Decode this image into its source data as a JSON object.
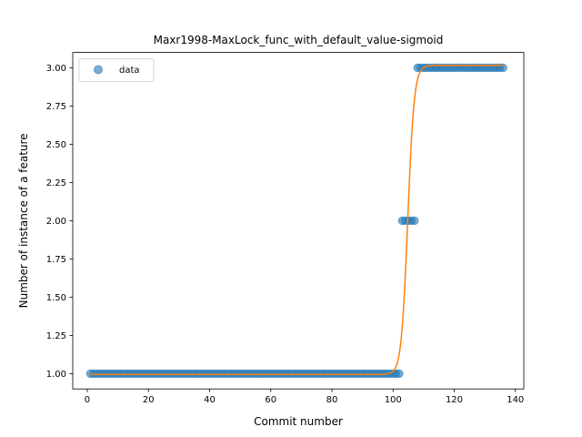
{
  "chart_data": {
    "type": "scatter",
    "title": "Maxr1998-MaxLock_func_with_default_value-sigmoid",
    "xlabel": "Commit number",
    "ylabel": "Number of instance of a feature",
    "xlim": [
      -4.75,
      142.75
    ],
    "ylim": [
      0.9,
      3.1
    ],
    "xticks": [
      0,
      20,
      40,
      60,
      80,
      100,
      120,
      140
    ],
    "xtick_labels": [
      "0",
      "20",
      "40",
      "60",
      "80",
      "100",
      "120",
      "140"
    ],
    "yticks": [
      1.0,
      1.25,
      1.5,
      1.75,
      2.0,
      2.25,
      2.5,
      2.75,
      3.0
    ],
    "ytick_labels": [
      "1.00",
      "1.25",
      "1.50",
      "1.75",
      "2.00",
      "2.25",
      "2.50",
      "2.75",
      "3.00"
    ],
    "grid": false,
    "legend": {
      "position": "upper-left",
      "entries": [
        "data"
      ]
    },
    "series": [
      {
        "name": "data",
        "kind": "points",
        "color": "#1f77b4",
        "segments": [
          {
            "x_start": 1,
            "x_end": 102,
            "y": 1
          },
          {
            "x_start": 103,
            "x_end": 107,
            "y": 2
          },
          {
            "x_start": 108,
            "x_end": 136,
            "y": 3
          }
        ]
      },
      {
        "kind": "line",
        "color": "#ff7f0e",
        "sigmoid": {
          "L": 2.02,
          "x0": 104.8,
          "k": 0.95,
          "b": 0.995,
          "x_from": 1,
          "x_to": 136
        }
      }
    ]
  }
}
